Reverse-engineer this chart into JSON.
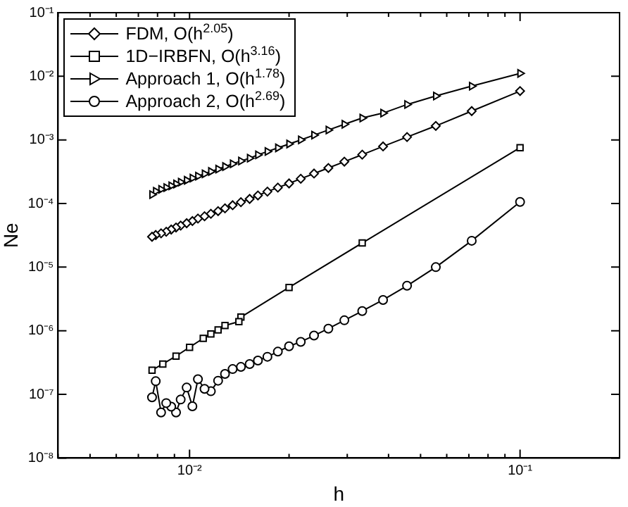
{
  "chart_data": {
    "type": "line",
    "xlabel": "h",
    "ylabel": "Ne",
    "log": "xy",
    "grid": false,
    "legend": "top left",
    "xlim": [
      0.004,
      0.2
    ],
    "ylim": [
      1e-08,
      0.1
    ],
    "xticks": [
      {
        "value": 0.004,
        "label": null
      },
      {
        "value": 0.005,
        "label": null
      },
      {
        "value": 0.006,
        "label": null
      },
      {
        "value": 0.007,
        "label": null
      },
      {
        "value": 0.008,
        "label": null
      },
      {
        "value": 0.009,
        "label": null
      },
      {
        "value": 0.01,
        "label": "10⁻²"
      },
      {
        "value": 0.02,
        "label": null
      },
      {
        "value": 0.03,
        "label": null
      },
      {
        "value": 0.04,
        "label": null
      },
      {
        "value": 0.05,
        "label": null
      },
      {
        "value": 0.06,
        "label": null
      },
      {
        "value": 0.07,
        "label": null
      },
      {
        "value": 0.08,
        "label": null
      },
      {
        "value": 0.09,
        "label": null
      },
      {
        "value": 0.1,
        "label": "10⁻¹"
      },
      {
        "value": 0.2,
        "label": null
      }
    ],
    "yticks": [
      {
        "value": 1e-08,
        "label": "10⁻⁸"
      },
      {
        "value": 1e-07,
        "label": "10⁻⁷"
      },
      {
        "value": 1e-06,
        "label": "10⁻⁶"
      },
      {
        "value": 1e-05,
        "label": "10⁻⁵"
      },
      {
        "value": 0.0001,
        "label": "10⁻⁴"
      },
      {
        "value": 0.001,
        "label": "10⁻³"
      },
      {
        "value": 0.01,
        "label": "10⁻²"
      },
      {
        "value": 0.1,
        "label": "10⁻¹"
      }
    ],
    "x": [
      0.1,
      0.0714,
      0.0556,
      0.0455,
      0.0385,
      0.0333,
      0.0294,
      0.0263,
      0.0238,
      0.0217,
      0.02,
      0.0185,
      0.0172,
      0.0161,
      0.0152,
      0.0143,
      0.0135,
      0.0128,
      0.0122,
      0.0116,
      0.0111,
      0.0106,
      0.0102,
      0.0098,
      0.0094,
      0.0091,
      0.0088,
      0.0085,
      0.0082,
      0.0079,
      0.0077
    ],
    "series": [
      {
        "name": "FDM, O(h$^{2.05}$)",
        "color": "#000000",
        "marker": "diamond",
        "values": [
          0.00586,
          0.00284,
          0.00166,
          0.00111,
          0.00079,
          0.000587,
          0.000455,
          0.000362,
          0.000296,
          0.000245,
          0.000207,
          0.000178,
          0.000154,
          0.000134,
          0.000118,
          0.000105,
          9.4e-05,
          8.4e-05,
          7.6e-05,
          6.9e-05,
          6.3e-05,
          5.8e-05,
          5.3e-05,
          4.9e-05,
          4.5e-05,
          4.2e-05,
          3.9e-05,
          3.6e-05,
          3.4e-05,
          3.2e-05,
          3e-05
        ]
      },
      {
        "name": "1D−IRBFN, O(h$^{3.16}$)",
        "color": "#000000",
        "marker": "square",
        "x": [
          0.1,
          0.0333,
          0.02,
          0.0143,
          0.0141,
          0.0128,
          0.0122,
          0.0116,
          0.011,
          0.01,
          0.0091,
          0.0083,
          0.0077
        ],
        "values": [
          0.000755,
          2.4e-05,
          4.8e-06,
          1.64e-06,
          1.39e-06,
          1.21e-06,
          1.03e-06,
          8.9e-07,
          7.6e-07,
          5.5e-07,
          4e-07,
          3e-07,
          2.4e-07
        ]
      },
      {
        "name": "Approach 1, O(h$^{1.78}$)",
        "color": "#000000",
        "marker": "triangle",
        "values": [
          0.0111,
          0.007,
          0.0049,
          0.0036,
          0.00264,
          0.00221,
          0.00176,
          0.00143,
          0.00119,
          0.001,
          0.000863,
          0.00075,
          0.000658,
          0.000582,
          0.000516,
          0.000466,
          0.000421,
          0.000381,
          0.000348,
          0.000319,
          0.000293,
          0.00027,
          0.000251,
          0.000232,
          0.000217,
          0.000203,
          0.00019,
          0.000178,
          0.000167,
          0.000156,
          0.000138
        ]
      },
      {
        "name": "Approach 2, O(h$^{2.69}$)",
        "color": "#000000",
        "marker": "circle",
        "values": [
          0.000106,
          2.6e-05,
          1e-05,
          5.1e-06,
          3.05e-06,
          2.04e-06,
          1.46e-06,
          1.08e-06,
          8.4e-07,
          6.7e-07,
          5.7e-07,
          4.7e-07,
          3.9e-07,
          3.4e-07,
          3e-07,
          2.7e-07,
          2.5e-07,
          2.1e-07,
          1.64e-07,
          1.12e-07,
          1.22e-07,
          1.73e-07,
          6.5e-08,
          1.28e-07,
          8.3e-08,
          5.2e-08,
          6.4e-08,
          7.3e-08,
          5.2e-08,
          1.61e-07,
          9e-08
        ]
      }
    ]
  }
}
